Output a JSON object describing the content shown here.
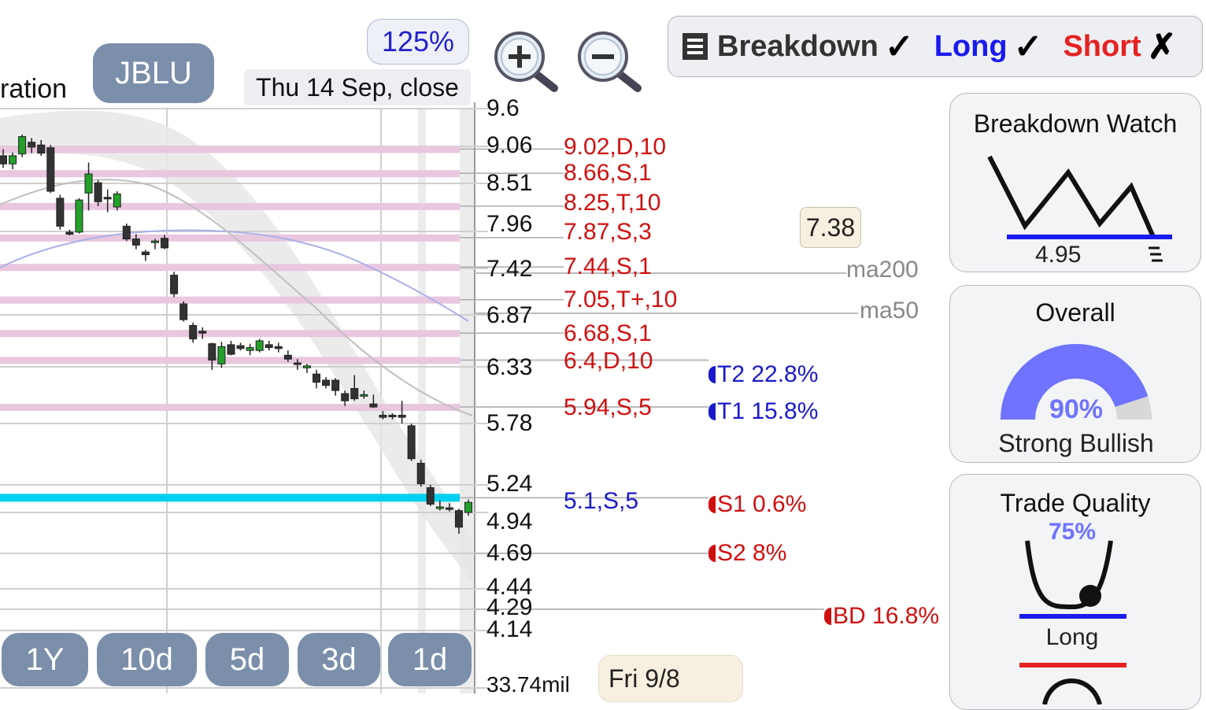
{
  "header": {
    "cropped_title": "ration",
    "ticker": "JBLU",
    "zoom": "125%",
    "date": "Thu 14 Sep, close",
    "hover_date": "Fri 9/8",
    "current_price_tag": "7.38"
  },
  "toolbar": {
    "zoom_in_icon": "zoom-in-magnifier",
    "zoom_out_icon": "zoom-out-magnifier"
  },
  "modes": [
    {
      "label": "Breakdown",
      "mark": "✓",
      "color": "#333333",
      "icon": "list-icon"
    },
    {
      "label": "Long",
      "mark": "✓",
      "color": "#1a1aee"
    },
    {
      "label": "Short",
      "mark": "✗",
      "color": "#e52222"
    }
  ],
  "ranges": [
    "1Y",
    "10d",
    "5d",
    "3d",
    "1d"
  ],
  "y_axis": [
    "9.6",
    "9.06",
    "8.51",
    "7.96",
    "7.42",
    "6.87",
    "6.33",
    "5.78",
    "5.24",
    "4.94",
    "4.69",
    "4.44",
    "4.29",
    "4.14"
  ],
  "volume_label": "33.74mil",
  "levels": [
    {
      "text": "9.02,D,10",
      "color": "#d01010"
    },
    {
      "text": "8.66,S,1",
      "color": "#d01010"
    },
    {
      "text": "8.25,T,10",
      "color": "#d01010"
    },
    {
      "text": "7.87,S,3",
      "color": "#d01010"
    },
    {
      "text": "7.44,S,1",
      "color": "#d01010"
    },
    {
      "text": "7.05,T+,10",
      "color": "#d01010"
    },
    {
      "text": "6.68,S,1",
      "color": "#d01010"
    },
    {
      "text": "6.4,D,10",
      "color": "#d01010"
    },
    {
      "text": "5.94,S,5",
      "color": "#d01010"
    },
    {
      "text": "5.1,S,5",
      "color": "#1a1acc"
    }
  ],
  "moving_averages": [
    "ma200",
    "ma50"
  ],
  "targets": [
    {
      "text": "T2 22.8%",
      "color": "#1a1acc"
    },
    {
      "text": "T1 15.8%",
      "color": "#1a1acc"
    },
    {
      "text": "S1 0.6%",
      "color": "#d01010"
    },
    {
      "text": "S2 8%",
      "color": "#d01010"
    },
    {
      "text": "BD 16.8%",
      "color": "#d01010"
    }
  ],
  "cards": {
    "breakdown_watch": {
      "title": "Breakdown Watch",
      "level": "4.95"
    },
    "overall": {
      "title": "Overall",
      "percent": "90%",
      "percent_value": 90,
      "verdict": "Strong Bullish"
    },
    "trade_quality": {
      "title": "Trade Quality",
      "percent": "75%",
      "side": "Long"
    }
  },
  "chart_data": {
    "type": "candlestick",
    "ticker": "JBLU",
    "y_ticks": [
      9.6,
      9.06,
      8.51,
      7.96,
      7.42,
      6.87,
      6.33,
      5.78,
      5.24,
      4.94,
      4.69,
      4.44,
      4.29,
      4.14
    ],
    "resistance_levels": [
      9.02,
      8.66,
      8.25,
      7.87,
      7.44,
      7.05,
      6.68,
      6.4,
      5.94
    ],
    "support_levels": [
      5.1
    ],
    "candles": [
      {
        "o": 8.92,
        "h": 9.02,
        "l": 8.74,
        "c": 8.8
      },
      {
        "o": 8.8,
        "h": 8.97,
        "l": 8.72,
        "c": 8.92
      },
      {
        "o": 8.95,
        "h": 9.23,
        "l": 8.9,
        "c": 9.2
      },
      {
        "o": 9.12,
        "h": 9.18,
        "l": 8.96,
        "c": 9.05
      },
      {
        "o": 9.08,
        "h": 9.15,
        "l": 8.92,
        "c": 8.96
      },
      {
        "o": 9.04,
        "h": 9.08,
        "l": 8.4,
        "c": 8.42
      },
      {
        "o": 8.34,
        "h": 8.38,
        "l": 7.98,
        "c": 8.02
      },
      {
        "o": 7.95,
        "h": 7.98,
        "l": 7.9,
        "c": 7.92
      },
      {
        "o": 7.95,
        "h": 8.34,
        "l": 7.93,
        "c": 8.32
      },
      {
        "o": 8.4,
        "h": 8.82,
        "l": 8.2,
        "c": 8.65
      },
      {
        "o": 8.52,
        "h": 8.56,
        "l": 8.25,
        "c": 8.3
      },
      {
        "o": 8.35,
        "h": 8.44,
        "l": 8.18,
        "c": 8.34
      },
      {
        "o": 8.24,
        "h": 8.42,
        "l": 8.2,
        "c": 8.39
      },
      {
        "o": 8.02,
        "h": 8.05,
        "l": 7.82,
        "c": 7.85
      },
      {
        "o": 7.85,
        "h": 7.92,
        "l": 7.7,
        "c": 7.76
      },
      {
        "o": 7.66,
        "h": 7.69,
        "l": 7.53,
        "c": 7.62
      },
      {
        "o": 7.8,
        "h": 7.85,
        "l": 7.7,
        "c": 7.82
      },
      {
        "o": 7.86,
        "h": 7.91,
        "l": 7.7,
        "c": 7.72
      },
      {
        "o": 7.34,
        "h": 7.38,
        "l": 7.08,
        "c": 7.12
      },
      {
        "o": 7.0,
        "h": 7.03,
        "l": 6.8,
        "c": 6.82
      },
      {
        "o": 6.76,
        "h": 6.79,
        "l": 6.58,
        "c": 6.62
      },
      {
        "o": 6.7,
        "h": 6.74,
        "l": 6.62,
        "c": 6.68
      },
      {
        "o": 6.57,
        "h": 6.58,
        "l": 6.3,
        "c": 6.4
      },
      {
        "o": 6.36,
        "h": 6.59,
        "l": 6.32,
        "c": 6.54
      },
      {
        "o": 6.56,
        "h": 6.6,
        "l": 6.45,
        "c": 6.46
      },
      {
        "o": 6.55,
        "h": 6.58,
        "l": 6.5,
        "c": 6.52
      },
      {
        "o": 6.5,
        "h": 6.57,
        "l": 6.45,
        "c": 6.53
      },
      {
        "o": 6.5,
        "h": 6.62,
        "l": 6.48,
        "c": 6.6
      },
      {
        "o": 6.56,
        "h": 6.6,
        "l": 6.5,
        "c": 6.53
      },
      {
        "o": 6.54,
        "h": 6.58,
        "l": 6.48,
        "c": 6.52
      },
      {
        "o": 6.45,
        "h": 6.5,
        "l": 6.38,
        "c": 6.41
      },
      {
        "o": 6.37,
        "h": 6.41,
        "l": 6.3,
        "c": 6.36
      },
      {
        "o": 6.32,
        "h": 6.36,
        "l": 6.27,
        "c": 6.34
      },
      {
        "o": 6.26,
        "h": 6.3,
        "l": 6.12,
        "c": 6.18
      },
      {
        "o": 6.2,
        "h": 6.23,
        "l": 6.12,
        "c": 6.15
      },
      {
        "o": 6.2,
        "h": 6.22,
        "l": 6.05,
        "c": 6.1
      },
      {
        "o": 6.07,
        "h": 6.1,
        "l": 5.95,
        "c": 6.0
      },
      {
        "o": 6.12,
        "h": 6.25,
        "l": 6.0,
        "c": 6.02
      },
      {
        "o": 6.05,
        "h": 6.1,
        "l": 6.02,
        "c": 6.06
      },
      {
        "o": 5.97,
        "h": 6.06,
        "l": 5.93,
        "c": 5.94
      },
      {
        "o": 5.86,
        "h": 5.9,
        "l": 5.82,
        "c": 5.84
      },
      {
        "o": 5.86,
        "h": 5.88,
        "l": 5.82,
        "c": 5.85
      },
      {
        "o": 5.86,
        "h": 6.0,
        "l": 5.78,
        "c": 5.84
      },
      {
        "o": 5.76,
        "h": 5.78,
        "l": 5.45,
        "c": 5.47
      },
      {
        "o": 5.43,
        "h": 5.46,
        "l": 5.22,
        "c": 5.25
      },
      {
        "o": 5.21,
        "h": 5.24,
        "l": 5.01,
        "c": 5.03
      },
      {
        "o": 5.0,
        "h": 5.07,
        "l": 4.96,
        "c": 5.0
      },
      {
        "o": 4.99,
        "h": 5.04,
        "l": 4.95,
        "c": 4.98
      },
      {
        "o": 4.96,
        "h": 4.98,
        "l": 4.81,
        "c": 4.85
      },
      {
        "o": 4.94,
        "h": 5.08,
        "l": 4.92,
        "c": 5.05
      }
    ]
  },
  "colors": {
    "up_candle": "#22a02a",
    "down_candle": "#333333",
    "resistance_band": "#e8c7df",
    "support_line": "#00d0f0",
    "ma200": "#aab0e8",
    "ma50": "#bfbfbf",
    "gauge": "#6f73ff",
    "button": "#7b8faa"
  }
}
